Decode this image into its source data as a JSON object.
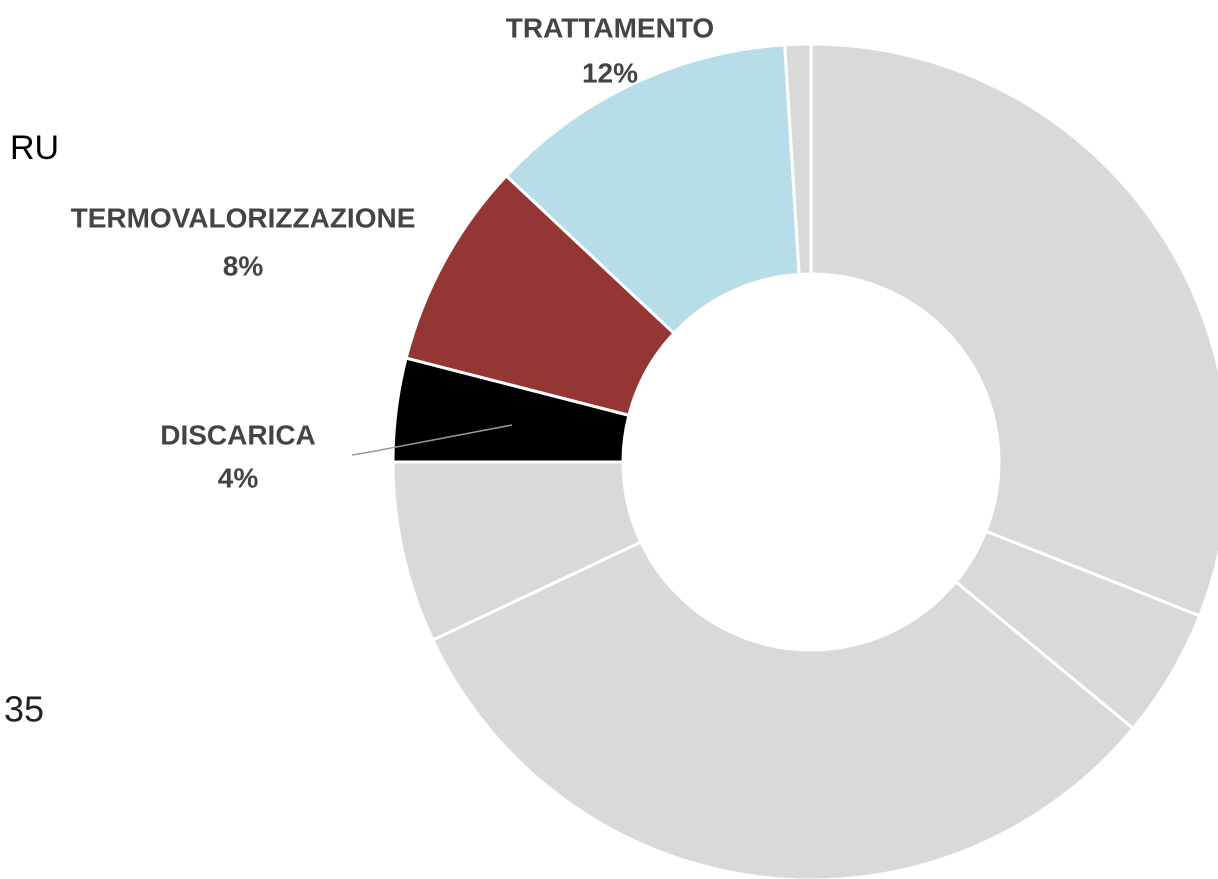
{
  "chart_data": {
    "type": "donut",
    "categories": [
      null,
      null,
      null,
      null,
      "DISCARICA",
      "TERMOVALORIZZAZIONE",
      "TRATTAMENTO",
      null
    ],
    "values": [
      31,
      5,
      32,
      7,
      4,
      8,
      12,
      1
    ],
    "value_labels": [
      null,
      null,
      null,
      null,
      "4%",
      "8%",
      "12%",
      null
    ],
    "colors": [
      "#d9d9d9",
      "#d9d9d9",
      "#d9d9d9",
      "#d9d9d9",
      "#000000",
      "#943634",
      "#b7dde8",
      "#d9d9d9"
    ],
    "annotations": [
      "RU",
      "35"
    ]
  }
}
